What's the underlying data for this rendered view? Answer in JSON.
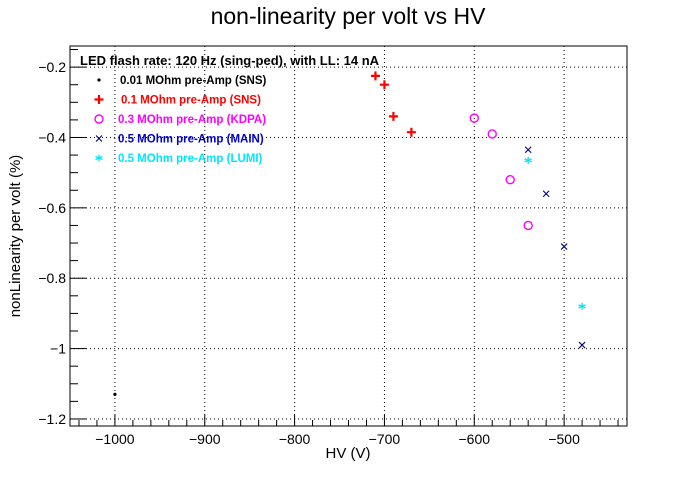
{
  "chart_data": {
    "type": "scatter",
    "title": "non-linearity per volt vs HV",
    "xlabel": "HV (V)",
    "ylabel": "nonLinearity per volt (%)",
    "xlim": [
      -1050,
      -430
    ],
    "ylim": [
      -1.22,
      -0.14
    ],
    "x_ticks": [
      -1000,
      -900,
      -800,
      -700,
      -600,
      -500
    ],
    "x_tick_labels": [
      "−1000",
      "−900",
      "−800",
      "−700",
      "−600",
      "−500"
    ],
    "y_ticks": [
      -1.2,
      -1.0,
      -0.8,
      -0.6,
      -0.4,
      -0.2
    ],
    "y_tick_labels": [
      "−1.2",
      "−1",
      "−0.8",
      "−0.6",
      "−0.4",
      "−0.2"
    ],
    "grid": true,
    "annotation": "LED flash rate: 120 Hz  (sing-ped), with LL: 14 nA",
    "legend_position": "top-left",
    "series": [
      {
        "name": "0.01 MOhm pre-Amp (SNS)",
        "color": "#000000",
        "marker": "dot",
        "x": [
          -1000
        ],
        "y": [
          -1.13
        ]
      },
      {
        "name": "0.1 MOhm pre-Amp (SNS)",
        "color": "#ff0000",
        "marker": "plus",
        "x": [
          -710,
          -700,
          -690,
          -670
        ],
        "y": [
          -0.225,
          -0.25,
          -0.34,
          -0.385
        ]
      },
      {
        "name": "0.3 MOhm pre-Amp (KDPA)",
        "color": "#ff00ff",
        "marker": "circle",
        "x": [
          -600,
          -580,
          -560,
          -540
        ],
        "y": [
          -0.345,
          -0.39,
          -0.52,
          -0.65
        ]
      },
      {
        "name": "0.5 MOhm pre-Amp (MAIN)",
        "color": "#0000ff",
        "legend_text_color": "#0000cc",
        "marker_color": "#000080",
        "marker": "cross",
        "x": [
          -540,
          -520,
          -500,
          -480
        ],
        "y": [
          -0.435,
          -0.56,
          -0.71,
          -0.99
        ]
      },
      {
        "name": "0.5 MOhm pre-Amp (LUMI)",
        "color": "#00e5ff",
        "marker": "star",
        "x": [
          -540,
          -480
        ],
        "y": [
          -0.465,
          -0.88
        ]
      }
    ]
  }
}
